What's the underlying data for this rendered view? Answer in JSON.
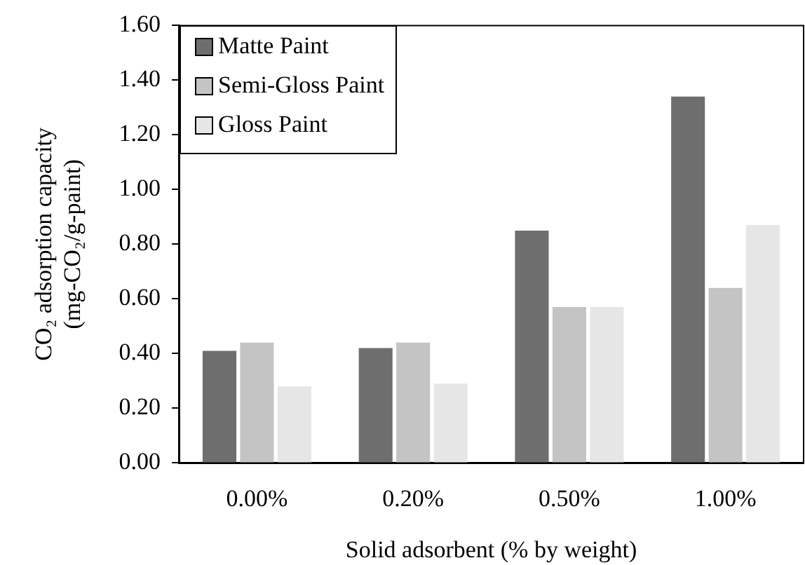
{
  "chart_data": {
    "type": "bar",
    "xlabel": "Solid adsorbent (% by weight)",
    "ylabel": "CO₂ adsorption capacity\n(mg-CO₂/g-paint)",
    "categories": [
      "0.00%",
      "0.20%",
      "0.50%",
      "1.00%"
    ],
    "series": [
      {
        "name": "Matte Paint",
        "color": "#6e6e6e",
        "values": [
          0.41,
          0.42,
          0.85,
          1.34
        ]
      },
      {
        "name": "Semi-Gloss Paint",
        "color": "#c4c4c4",
        "values": [
          0.44,
          0.44,
          0.57,
          0.64
        ]
      },
      {
        "name": "Gloss Paint",
        "color": "#e6e6e6",
        "values": [
          0.28,
          0.29,
          0.57,
          0.87
        ]
      }
    ],
    "ylim": [
      0,
      1.6
    ],
    "yticks": [
      {
        "value": 0,
        "label": "0.00"
      },
      {
        "value": 0.2,
        "label": "0.20"
      },
      {
        "value": 0.4,
        "label": "0.40"
      },
      {
        "value": 0.6,
        "label": "0.60"
      },
      {
        "value": 0.8,
        "label": "0.80"
      },
      {
        "value": 1,
        "label": "1.00"
      },
      {
        "value": 1.2,
        "label": "1.20"
      },
      {
        "value": 1.4,
        "label": "1.40"
      },
      {
        "value": 1.6,
        "label": "1.60"
      }
    ],
    "grid": false,
    "legend": "top left"
  }
}
